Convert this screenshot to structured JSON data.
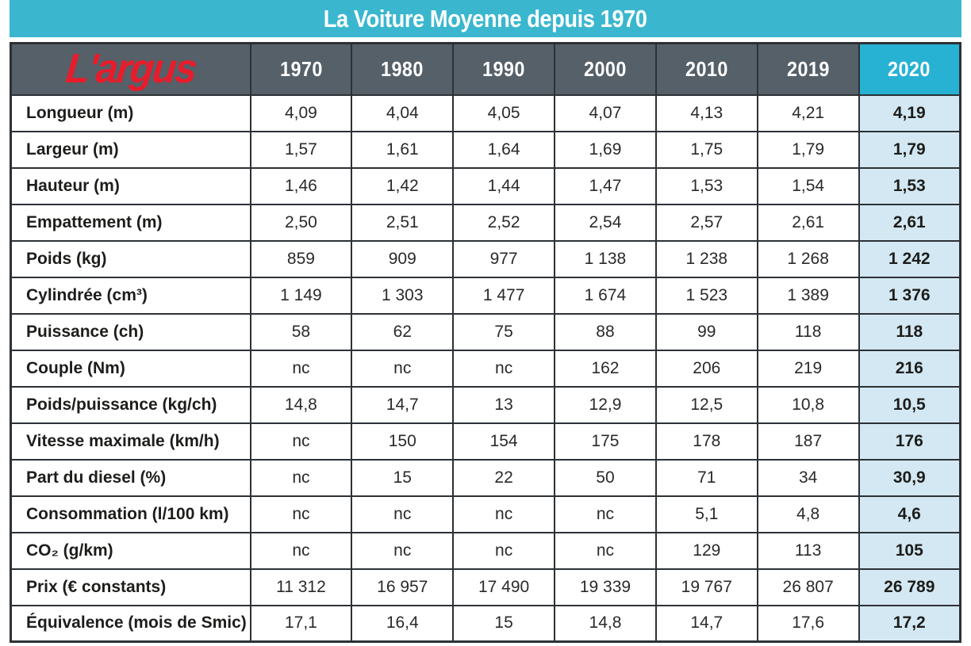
{
  "banner": {
    "title": "La Voiture Moyenne depuis 1970"
  },
  "logo_text": "L'argus",
  "colors": {
    "banner_cyan": "#3ab7ce",
    "header_dark": "#556069",
    "header_2020_cyan": "#27b2d4",
    "highlight_blue": "#d3e8f2",
    "logo_red": "#e81c2a",
    "border_dark": "#2c3136",
    "text_dark": "#1d1d1b"
  },
  "chart_data": {
    "type": "table",
    "title": "La Voiture Moyenne depuis 1970",
    "logo": "L'argus",
    "highlight_column": "2020",
    "columns": [
      "1970",
      "1980",
      "1990",
      "2000",
      "2010",
      "2019",
      "2020"
    ],
    "rows": [
      {
        "label": "Longueur (m)",
        "values": [
          "4,09",
          "4,04",
          "4,05",
          "4,07",
          "4,13",
          "4,21",
          "4,19"
        ]
      },
      {
        "label": "Largeur (m)",
        "values": [
          "1,57",
          "1,61",
          "1,64",
          "1,69",
          "1,75",
          "1,79",
          "1,79"
        ]
      },
      {
        "label": "Hauteur (m)",
        "values": [
          "1,46",
          "1,42",
          "1,44",
          "1,47",
          "1,53",
          "1,54",
          "1,53"
        ]
      },
      {
        "label": "Empattement (m)",
        "values": [
          "2,50",
          "2,51",
          "2,52",
          "2,54",
          "2,57",
          "2,61",
          "2,61"
        ]
      },
      {
        "label": "Poids (kg)",
        "values": [
          "859",
          "909",
          "977",
          "1 138",
          "1 238",
          "1 268",
          "1 242"
        ]
      },
      {
        "label": "Cylindrée (cm³)",
        "values": [
          "1 149",
          "1 303",
          "1 477",
          "1 674",
          "1 523",
          "1 389",
          "1 376"
        ]
      },
      {
        "label": "Puissance (ch)",
        "values": [
          "58",
          "62",
          "75",
          "88",
          "99",
          "118",
          "118"
        ]
      },
      {
        "label": "Couple (Nm)",
        "values": [
          "nc",
          "nc",
          "nc",
          "162",
          "206",
          "219",
          "216"
        ]
      },
      {
        "label": "Poids/puissance (kg/ch)",
        "values": [
          "14,8",
          "14,7",
          "13",
          "12,9",
          "12,5",
          "10,8",
          "10,5"
        ]
      },
      {
        "label": "Vitesse maximale (km/h)",
        "values": [
          "nc",
          "150",
          "154",
          "175",
          "178",
          "187",
          "176"
        ]
      },
      {
        "label": "Part du diesel (%)",
        "values": [
          "nc",
          "15",
          "22",
          "50",
          "71",
          "34",
          "30,9"
        ]
      },
      {
        "label": "Consommation (l/100 km)",
        "values": [
          "nc",
          "nc",
          "nc",
          "nc",
          "5,1",
          "4,8",
          "4,6"
        ]
      },
      {
        "label": "CO₂ (g/km)",
        "values": [
          "nc",
          "nc",
          "nc",
          "nc",
          "129",
          "113",
          "105"
        ]
      },
      {
        "label": "Prix (€ constants)",
        "values": [
          "11 312",
          "16 957",
          "17 490",
          "19 339",
          "19 767",
          "26 807",
          "26 789"
        ]
      },
      {
        "label": "Équivalence (mois de Smic)",
        "values": [
          "17,1",
          "16,4",
          "15",
          "14,8",
          "14,7",
          "17,6",
          "17,2"
        ]
      }
    ]
  }
}
